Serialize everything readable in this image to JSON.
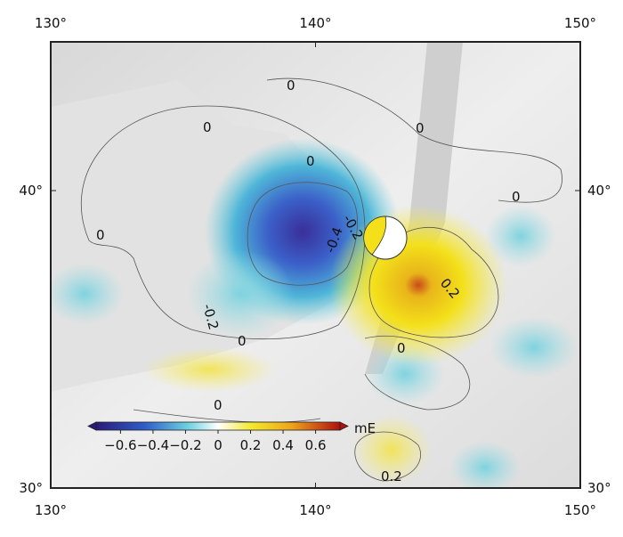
{
  "map": {
    "lon_ticks": [
      {
        "value": 130,
        "label": "130°"
      },
      {
        "value": 140,
        "label": "140°"
      },
      {
        "value": 150,
        "label": "150°"
      }
    ],
    "lat_ticks": [
      {
        "value": 30,
        "label": "30°"
      },
      {
        "value": 40,
        "label": "40°"
      }
    ],
    "lon_range": [
      130,
      150
    ],
    "lat_range": [
      30,
      45
    ],
    "contour_labels": [
      "0",
      "0",
      "0",
      "0",
      "0",
      "0",
      "0",
      "0",
      "-0.2",
      "-0.4",
      "-0.2",
      "0.2",
      "0.2"
    ],
    "colorbar": {
      "unit": "mE",
      "range": [
        -0.75,
        0.75
      ],
      "ticks": [
        {
          "value": -0.6,
          "label": "−0.6"
        },
        {
          "value": -0.4,
          "label": "−0.4"
        },
        {
          "value": -0.2,
          "label": "−0.2"
        },
        0.0,
        0.2,
        0.4,
        0.6
      ]
    }
  }
}
